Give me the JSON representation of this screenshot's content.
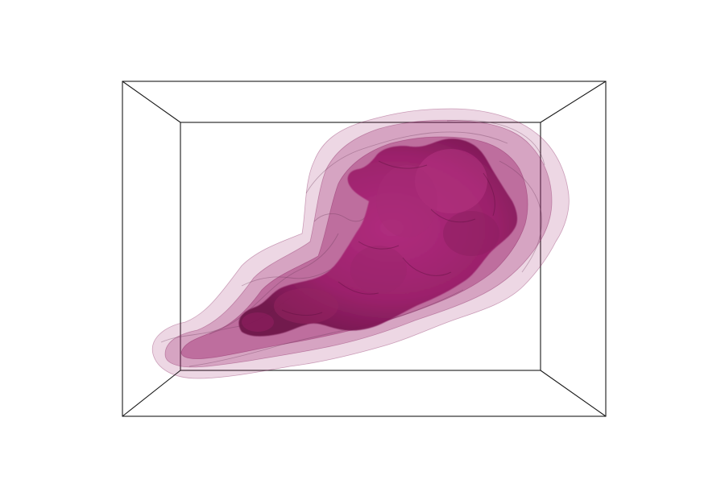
{
  "scene": {
    "background": "#ffffff",
    "box_color": "#1a1a1a",
    "surface_color": "#9b1f6a",
    "surface_color_dark": "#7d1553",
    "layer_opacities": [
      0.18,
      0.28,
      0.4,
      0.95
    ]
  }
}
